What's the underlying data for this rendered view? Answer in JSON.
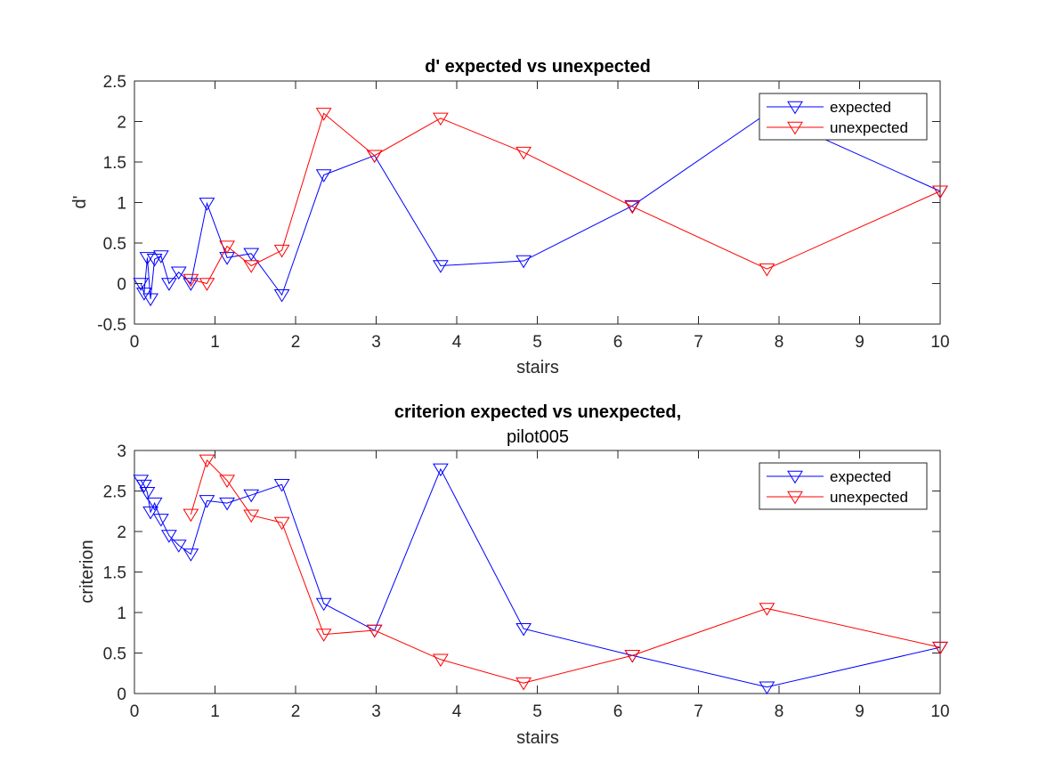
{
  "colors": {
    "expected": "#0000ff",
    "unexpected": "#ff0000",
    "axis": "#262626"
  },
  "chart_data": [
    {
      "type": "line",
      "title": "d' expected vs unexpected",
      "subtitle": "",
      "xlabel": "stairs",
      "ylabel": "d'",
      "xlim": [
        0,
        10
      ],
      "ylim": [
        -0.5,
        2.5
      ],
      "xticks": [
        "0",
        "1",
        "2",
        "3",
        "4",
        "5",
        "6",
        "7",
        "8",
        "9",
        "10"
      ],
      "yticks": [
        "-0.5",
        "0",
        "0.5",
        "1",
        "1.5",
        "2",
        "2.5"
      ],
      "grid": false,
      "legend": "top-right",
      "marker": "triangle-down",
      "series": [
        {
          "name": "expected",
          "color": "#0000ff",
          "points": [
            [
              0.08,
              0.0
            ],
            [
              0.12,
              -0.12
            ],
            [
              0.16,
              0.32
            ],
            [
              0.2,
              -0.19
            ],
            [
              0.25,
              0.3
            ],
            [
              0.33,
              0.34
            ],
            [
              0.43,
              0.0
            ],
            [
              0.55,
              0.14
            ],
            [
              0.7,
              0.0
            ],
            [
              0.9,
              0.99
            ],
            [
              1.15,
              0.32
            ],
            [
              1.45,
              0.37
            ],
            [
              1.83,
              -0.14
            ],
            [
              2.35,
              1.34
            ],
            [
              2.98,
              1.58
            ],
            [
              3.8,
              0.22
            ],
            [
              4.83,
              0.28
            ],
            [
              6.18,
              0.96
            ],
            [
              7.85,
              2.1
            ],
            [
              10.0,
              1.14
            ]
          ]
        },
        {
          "name": "unexpected",
          "color": "#ff0000",
          "points": [
            [
              0.7,
              0.05
            ],
            [
              0.9,
              0.0
            ],
            [
              1.15,
              0.46
            ],
            [
              1.45,
              0.22
            ],
            [
              1.83,
              0.41
            ],
            [
              2.35,
              2.1
            ],
            [
              2.98,
              1.58
            ],
            [
              3.8,
              2.04
            ],
            [
              4.83,
              1.62
            ],
            [
              6.18,
              0.95
            ],
            [
              7.85,
              0.18
            ],
            [
              10.0,
              1.14
            ]
          ]
        }
      ]
    },
    {
      "type": "line",
      "title": "criterion expected vs unexpected,",
      "subtitle": "pilot005",
      "xlabel": "stairs",
      "ylabel": "criterion",
      "xlim": [
        0,
        10
      ],
      "ylim": [
        0,
        3
      ],
      "xticks": [
        "0",
        "1",
        "2",
        "3",
        "4",
        "5",
        "6",
        "7",
        "8",
        "9",
        "10"
      ],
      "yticks": [
        "0",
        "0.5",
        "1",
        "1.5",
        "2",
        "2.5",
        "3"
      ],
      "grid": false,
      "legend": "top-right",
      "marker": "triangle-down",
      "series": [
        {
          "name": "expected",
          "color": "#0000ff",
          "points": [
            [
              0.08,
              2.63
            ],
            [
              0.12,
              2.57
            ],
            [
              0.16,
              2.48
            ],
            [
              0.2,
              2.24
            ],
            [
              0.25,
              2.35
            ],
            [
              0.33,
              2.15
            ],
            [
              0.43,
              1.95
            ],
            [
              0.55,
              1.83
            ],
            [
              0.7,
              1.72
            ],
            [
              0.9,
              2.38
            ],
            [
              1.15,
              2.35
            ],
            [
              1.45,
              2.45
            ],
            [
              1.83,
              2.58
            ],
            [
              2.35,
              1.11
            ],
            [
              2.98,
              0.78
            ],
            [
              3.8,
              2.77
            ],
            [
              4.83,
              0.8
            ],
            [
              6.18,
              0.47
            ],
            [
              7.85,
              0.08
            ],
            [
              10.0,
              0.57
            ]
          ]
        },
        {
          "name": "unexpected",
          "color": "#ff0000",
          "points": [
            [
              0.7,
              2.21
            ],
            [
              0.9,
              2.88
            ],
            [
              1.15,
              2.63
            ],
            [
              1.45,
              2.2
            ],
            [
              1.83,
              2.11
            ],
            [
              2.35,
              0.73
            ],
            [
              2.98,
              0.78
            ],
            [
              3.8,
              0.42
            ],
            [
              4.83,
              0.13
            ],
            [
              6.18,
              0.47
            ],
            [
              7.85,
              1.05
            ],
            [
              10.0,
              0.57
            ]
          ]
        }
      ]
    }
  ]
}
